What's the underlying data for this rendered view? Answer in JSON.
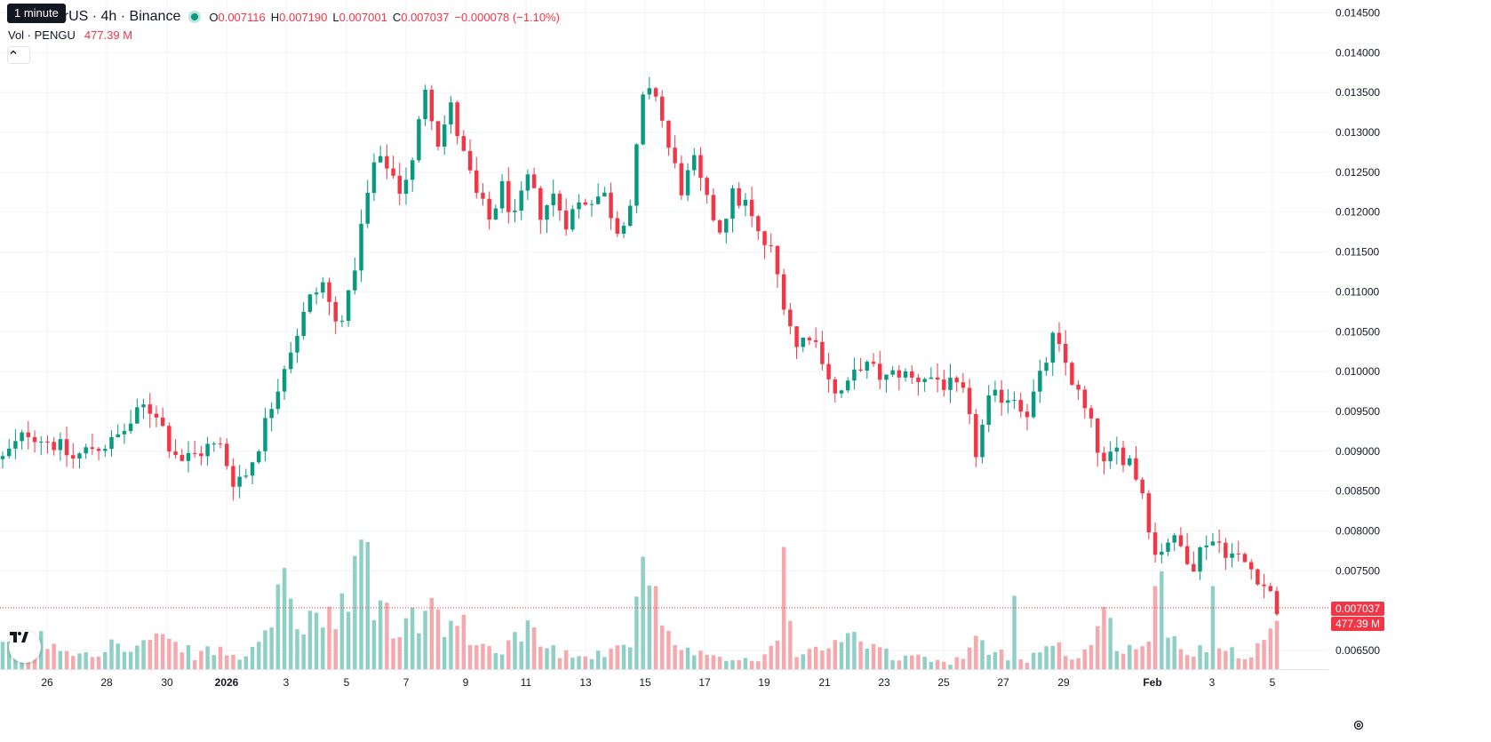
{
  "legend": {
    "symbol": "U / TetherUS · 4h · Binance",
    "tooltip": "1 minute",
    "o_key": "O",
    "o_val": "0.007116",
    "h_key": "H",
    "h_val": "0.007190",
    "l_key": "L",
    "l_val": "0.007001",
    "c_key": "C",
    "c_val": "0.007037",
    "change": "−0.000078 (−1.10%)"
  },
  "volume_legend": {
    "label": "Vol · PENGU",
    "value": "477.39 M"
  },
  "collapse_icon": "chevron-up-icon",
  "last_price_label": "0.007037",
  "last_volume_label": "477.39 M",
  "colors": {
    "up": "#089981",
    "down": "#f23645",
    "vol_up": "#8fd0c6",
    "vol_down": "#f7a8ad",
    "grid": "#f0f3fa"
  },
  "chart_data": {
    "type": "candlestick",
    "price_axis": [
      "0.014500",
      "0.014000",
      "0.013500",
      "0.013000",
      "0.012500",
      "0.012000",
      "0.011500",
      "0.011000",
      "0.010500",
      "0.010000",
      "0.009500",
      "0.009000",
      "0.008500",
      "0.008000",
      "0.007500",
      "0.006500"
    ],
    "x_ticks": [
      "26",
      "28",
      "30",
      "2026",
      "3",
      "5",
      "7",
      "9",
      "11",
      "13",
      "15",
      "17",
      "19",
      "21",
      "23",
      "25",
      "27",
      "29",
      "Feb",
      "3",
      "5"
    ],
    "ylim": [
      0.0062,
      0.0146
    ],
    "grid": true,
    "price_path": [
      [
        0,
        0.0089
      ],
      [
        4,
        0.00925
      ],
      [
        8,
        0.0091
      ],
      [
        11,
        0.0089
      ],
      [
        14,
        0.00905
      ],
      [
        17,
        0.0091
      ],
      [
        20,
        0.00935
      ],
      [
        22,
        0.00955
      ],
      [
        24,
        0.0095
      ],
      [
        26,
        0.0091
      ],
      [
        28,
        0.0089
      ],
      [
        30,
        0.00895
      ],
      [
        32,
        0.00905
      ],
      [
        34,
        0.00905
      ],
      [
        36,
        0.00865
      ],
      [
        38,
        0.0087
      ],
      [
        40,
        0.0091
      ],
      [
        42,
        0.0096
      ],
      [
        44,
        0.0101
      ],
      [
        46,
        0.0105
      ],
      [
        48,
        0.0109
      ],
      [
        50,
        0.0111
      ],
      [
        52,
        0.0106
      ],
      [
        54,
        0.0109
      ],
      [
        56,
        0.0118
      ],
      [
        58,
        0.0126
      ],
      [
        60,
        0.0126
      ],
      [
        62,
        0.0123
      ],
      [
        64,
        0.0126
      ],
      [
        66,
        0.0136
      ],
      [
        68,
        0.0129
      ],
      [
        70,
        0.0133
      ],
      [
        72,
        0.0127
      ],
      [
        74,
        0.0122
      ],
      [
        76,
        0.0119
      ],
      [
        78,
        0.0123
      ],
      [
        80,
        0.0119
      ],
      [
        82,
        0.0124
      ],
      [
        84,
        0.012
      ],
      [
        86,
        0.0122
      ],
      [
        88,
        0.0119
      ],
      [
        90,
        0.0121
      ],
      [
        92,
        0.0122
      ],
      [
        94,
        0.0122
      ],
      [
        96,
        0.0118
      ],
      [
        98,
        0.0121
      ],
      [
        100,
        0.0134
      ],
      [
        102,
        0.0135
      ],
      [
        104,
        0.0128
      ],
      [
        106,
        0.0123
      ],
      [
        108,
        0.0126
      ],
      [
        110,
        0.0121
      ],
      [
        112,
        0.0118
      ],
      [
        114,
        0.0122
      ],
      [
        116,
        0.0121
      ],
      [
        118,
        0.0117
      ],
      [
        120,
        0.0115
      ],
      [
        122,
        0.0109
      ],
      [
        124,
        0.0103
      ],
      [
        126,
        0.0105
      ],
      [
        128,
        0.0102
      ],
      [
        130,
        0.0097
      ],
      [
        132,
        0.0098
      ],
      [
        134,
        0.0101
      ],
      [
        136,
        0.01
      ],
      [
        138,
        0.0099
      ],
      [
        140,
        0.01
      ],
      [
        142,
        0.0099
      ],
      [
        144,
        0.00995
      ],
      [
        146,
        0.0099
      ],
      [
        148,
        0.0098
      ],
      [
        150,
        0.0097
      ],
      [
        152,
        0.009
      ],
      [
        154,
        0.0096
      ],
      [
        156,
        0.0097
      ],
      [
        158,
        0.0097
      ],
      [
        160,
        0.0095
      ],
      [
        162,
        0.0099
      ],
      [
        164,
        0.0104
      ],
      [
        166,
        0.0101
      ],
      [
        168,
        0.0097
      ],
      [
        170,
        0.0093
      ],
      [
        172,
        0.0088
      ],
      [
        174,
        0.009
      ],
      [
        176,
        0.0089
      ],
      [
        178,
        0.0085
      ],
      [
        180,
        0.0077
      ],
      [
        182,
        0.0079
      ],
      [
        184,
        0.0078
      ],
      [
        186,
        0.0076
      ],
      [
        188,
        0.0079
      ],
      [
        190,
        0.00785
      ],
      [
        192,
        0.0077
      ],
      [
        194,
        0.0076
      ],
      [
        196,
        0.00745
      ],
      [
        198,
        0.0072
      ],
      [
        199,
        0.007037
      ]
    ],
    "volume_path": [
      [
        0,
        40
      ],
      [
        6,
        60
      ],
      [
        12,
        35
      ],
      [
        18,
        50
      ],
      [
        20,
        35
      ],
      [
        23,
        60
      ],
      [
        26,
        50
      ],
      [
        30,
        30
      ],
      [
        34,
        40
      ],
      [
        36,
        25
      ],
      [
        38,
        20
      ],
      [
        40,
        80
      ],
      [
        42,
        100
      ],
      [
        44,
        150
      ],
      [
        46,
        80
      ],
      [
        48,
        120
      ],
      [
        50,
        90
      ],
      [
        52,
        100
      ],
      [
        54,
        130
      ],
      [
        56,
        210
      ],
      [
        58,
        150
      ],
      [
        60,
        100
      ],
      [
        62,
        80
      ],
      [
        64,
        100
      ],
      [
        66,
        120
      ],
      [
        68,
        100
      ],
      [
        70,
        90
      ],
      [
        72,
        80
      ],
      [
        74,
        50
      ],
      [
        76,
        40
      ],
      [
        78,
        50
      ],
      [
        80,
        60
      ],
      [
        82,
        100
      ],
      [
        84,
        50
      ],
      [
        86,
        40
      ],
      [
        88,
        30
      ],
      [
        90,
        40
      ],
      [
        92,
        30
      ],
      [
        94,
        35
      ],
      [
        96,
        40
      ],
      [
        98,
        70
      ],
      [
        100,
        150
      ],
      [
        102,
        100
      ],
      [
        104,
        60
      ],
      [
        106,
        40
      ],
      [
        108,
        30
      ],
      [
        110,
        25
      ],
      [
        112,
        20
      ],
      [
        114,
        20
      ],
      [
        116,
        20
      ],
      [
        118,
        20
      ],
      [
        120,
        40
      ],
      [
        122,
        120
      ],
      [
        124,
        40
      ],
      [
        126,
        30
      ],
      [
        128,
        40
      ],
      [
        130,
        60
      ],
      [
        132,
        70
      ],
      [
        134,
        50
      ],
      [
        136,
        40
      ],
      [
        138,
        30
      ],
      [
        140,
        20
      ],
      [
        142,
        30
      ],
      [
        144,
        20
      ],
      [
        146,
        15
      ],
      [
        148,
        15
      ],
      [
        150,
        25
      ],
      [
        152,
        50
      ],
      [
        154,
        40
      ],
      [
        156,
        30
      ],
      [
        158,
        25
      ],
      [
        160,
        20
      ],
      [
        162,
        40
      ],
      [
        164,
        60
      ],
      [
        166,
        30
      ],
      [
        168,
        25
      ],
      [
        170,
        50
      ],
      [
        172,
        100
      ],
      [
        174,
        60
      ],
      [
        176,
        40
      ],
      [
        178,
        40
      ],
      [
        180,
        100
      ],
      [
        182,
        60
      ],
      [
        184,
        40
      ],
      [
        186,
        30
      ],
      [
        188,
        50
      ],
      [
        190,
        60
      ],
      [
        192,
        40
      ],
      [
        194,
        30
      ],
      [
        196,
        50
      ],
      [
        198,
        70
      ],
      [
        199,
        80
      ]
    ],
    "volume_spikes": [
      [
        56,
        265
      ],
      [
        57,
        260
      ],
      [
        100,
        230
      ],
      [
        102,
        170
      ],
      [
        122,
        250
      ],
      [
        158,
        150
      ],
      [
        180,
        170
      ],
      [
        181,
        200
      ],
      [
        189,
        170
      ]
    ]
  }
}
